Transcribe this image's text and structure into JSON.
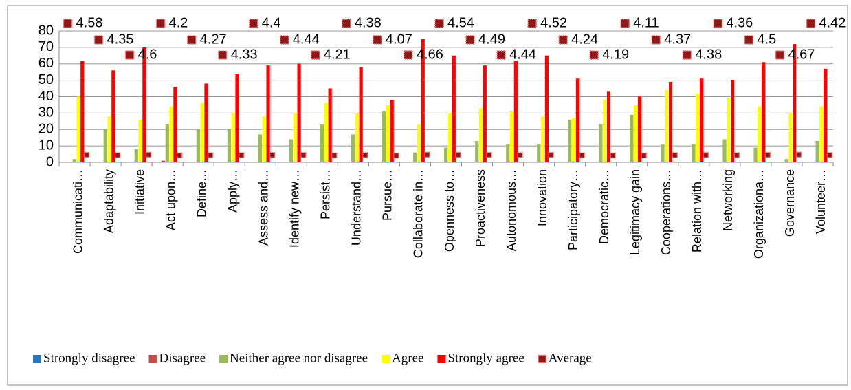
{
  "chart_data": {
    "type": "bar",
    "categories": [
      "Communicati…",
      "Adaptability",
      "Initiative",
      "Act upon…",
      "Define…",
      "Apply…",
      "Assess and…",
      "Identify new…",
      "Persist…",
      "Understand…",
      "Pursue…",
      "Collaborate in…",
      "Openness to…",
      "Proactiveness",
      "Autonomous…",
      "Innovation",
      "Participatory…",
      "Democratic…",
      "Legitimacy gain",
      "Cooperations…",
      "Relation with…",
      "Networking",
      "Organizationa…",
      "Governance",
      "Volunteer…"
    ],
    "series": [
      {
        "name": "Strongly disagree",
        "color": "#2e75b6",
        "values": [
          0,
          0,
          0,
          0,
          0,
          0,
          0,
          0,
          0,
          0,
          0,
          0,
          0,
          0,
          0,
          0,
          0,
          0,
          0,
          0,
          0,
          0,
          0,
          0,
          0
        ]
      },
      {
        "name": "Disagree",
        "color": "#c0504d",
        "values": [
          0,
          0,
          0,
          1,
          0,
          0,
          0,
          0,
          0,
          0,
          0,
          0,
          0,
          0,
          0,
          0,
          0,
          0,
          0,
          0,
          0,
          0,
          0,
          0,
          0
        ]
      },
      {
        "name": "Neither agree nor disagree",
        "color": "#9bbb59",
        "values": [
          2,
          20,
          8,
          23,
          20,
          20,
          17,
          14,
          23,
          17,
          31,
          6,
          9,
          13,
          11,
          11,
          26,
          23,
          29,
          11,
          11,
          14,
          9,
          2,
          13
        ]
      },
      {
        "name": "Agree",
        "color": "#ffff00",
        "values": [
          40,
          28,
          26,
          34,
          36,
          30,
          28,
          30,
          36,
          30,
          35,
          23,
          30,
          33,
          31,
          28,
          27,
          38,
          35,
          44,
          42,
          39,
          34,
          30,
          34
        ]
      },
      {
        "name": "Strongly agree",
        "color": "#ff0000",
        "values": [
          62,
          56,
          70,
          46,
          48,
          54,
          59,
          60,
          45,
          58,
          38,
          75,
          65,
          59,
          62,
          65,
          51,
          43,
          40,
          49,
          51,
          50,
          61,
          72,
          57
        ]
      },
      {
        "name": "Average",
        "color": "#8b1a1a",
        "marker": "square",
        "values": [
          4.58,
          4.35,
          4.6,
          4.2,
          4.27,
          4.33,
          4.4,
          4.44,
          4.21,
          4.38,
          4.07,
          4.66,
          4.54,
          4.49,
          4.44,
          4.52,
          4.24,
          4.19,
          4.11,
          4.37,
          4.38,
          4.36,
          4.5,
          4.67,
          4.42
        ]
      }
    ],
    "ylim": [
      0,
      80
    ],
    "yticks": [
      0,
      10,
      20,
      30,
      40,
      50,
      60,
      70,
      80
    ],
    "grid": true,
    "legend": "bottom"
  }
}
